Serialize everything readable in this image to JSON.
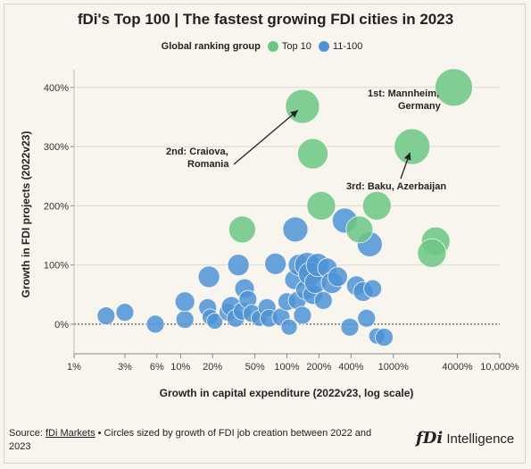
{
  "header": {
    "title": "fDi's Top 100 | The fastest growing FDI cities in 2023"
  },
  "legend": {
    "title": "Global ranking group",
    "entries": [
      {
        "label": "Top 10",
        "color": "#6cc784"
      },
      {
        "label": "11-100",
        "color": "#4f93d6"
      }
    ]
  },
  "footer": {
    "source_label": "Source: ",
    "source_link": "fDi Markets",
    "source_note": " • Circles sized by growth of FDI job creation between 2022 and 2023",
    "logo_mark": "fDi",
    "logo_text": " Intelligence"
  },
  "chart_data": {
    "type": "scatter",
    "title": "fDi's Top 100 | The fastest growing FDI cities in 2023",
    "xlabel": "Growth in capital expenditure (2022v23, log scale)",
    "ylabel": "Growth in FDI projects (2022v23)",
    "x_scale": "log",
    "x_unit": "%",
    "y_unit": "%",
    "xlim": [
      1,
      10000
    ],
    "ylim": [
      -50,
      430
    ],
    "x_ticks": [
      1,
      3,
      6,
      10,
      20,
      50,
      100,
      200,
      400,
      1000,
      4000,
      10000
    ],
    "x_tick_labels": [
      "1%",
      "3%",
      "6%",
      "10%",
      "20%",
      "50%",
      "100%",
      "200%",
      "400%",
      "1000%",
      "4000%",
      "10,000%"
    ],
    "y_ticks": [
      0,
      100,
      200,
      300,
      400
    ],
    "y_tick_labels": [
      "0%",
      "100%",
      "200%",
      "300%",
      "400%"
    ],
    "series": [
      {
        "name": "Top 10",
        "color": "#6cc784",
        "points": [
          {
            "x": 3700,
            "y": 400,
            "size": 21
          },
          {
            "x": 140,
            "y": 368,
            "size": 19
          },
          {
            "x": 1500,
            "y": 300,
            "size": 20
          },
          {
            "x": 175,
            "y": 288,
            "size": 17
          },
          {
            "x": 210,
            "y": 200,
            "size": 16
          },
          {
            "x": 700,
            "y": 200,
            "size": 16
          },
          {
            "x": 38,
            "y": 160,
            "size": 15
          },
          {
            "x": 2500,
            "y": 140,
            "size": 16
          },
          {
            "x": 480,
            "y": 160,
            "size": 15
          },
          {
            "x": 2300,
            "y": 120,
            "size": 16
          }
        ]
      },
      {
        "name": "11-100",
        "color": "#4f93d6",
        "points": [
          {
            "x": 2,
            "y": 14,
            "size": 10
          },
          {
            "x": 3,
            "y": 20,
            "size": 10
          },
          {
            "x": 5.8,
            "y": 0,
            "size": 10
          },
          {
            "x": 11,
            "y": 8,
            "size": 10
          },
          {
            "x": 11,
            "y": 38,
            "size": 11
          },
          {
            "x": 18,
            "y": 28,
            "size": 10
          },
          {
            "x": 19,
            "y": 12,
            "size": 9
          },
          {
            "x": 18.5,
            "y": 80,
            "size": 12
          },
          {
            "x": 21,
            "y": 5,
            "size": 9
          },
          {
            "x": 28,
            "y": 20,
            "size": 10
          },
          {
            "x": 30,
            "y": 30,
            "size": 11
          },
          {
            "x": 33,
            "y": 10,
            "size": 10
          },
          {
            "x": 35,
            "y": 100,
            "size": 12
          },
          {
            "x": 38,
            "y": 22,
            "size": 10
          },
          {
            "x": 40,
            "y": 60,
            "size": 11
          },
          {
            "x": 43,
            "y": 42,
            "size": 10
          },
          {
            "x": 47,
            "y": 18,
            "size": 10
          },
          {
            "x": 55,
            "y": 10,
            "size": 9
          },
          {
            "x": 65,
            "y": 28,
            "size": 10
          },
          {
            "x": 68,
            "y": 10,
            "size": 10
          },
          {
            "x": 78,
            "y": 102,
            "size": 12
          },
          {
            "x": 88,
            "y": 12,
            "size": 10
          },
          {
            "x": 100,
            "y": 38,
            "size": 10
          },
          {
            "x": 105,
            "y": -5,
            "size": 9
          },
          {
            "x": 120,
            "y": 160,
            "size": 14
          },
          {
            "x": 118,
            "y": 75,
            "size": 11
          },
          {
            "x": 125,
            "y": 40,
            "size": 10
          },
          {
            "x": 130,
            "y": 100,
            "size": 12
          },
          {
            "x": 140,
            "y": 15,
            "size": 10
          },
          {
            "x": 150,
            "y": 58,
            "size": 11
          },
          {
            "x": 155,
            "y": 100,
            "size": 14
          },
          {
            "x": 165,
            "y": 85,
            "size": 13
          },
          {
            "x": 175,
            "y": 50,
            "size": 11
          },
          {
            "x": 185,
            "y": 70,
            "size": 12
          },
          {
            "x": 195,
            "y": 100,
            "size": 13
          },
          {
            "x": 220,
            "y": 40,
            "size": 10
          },
          {
            "x": 240,
            "y": 95,
            "size": 11
          },
          {
            "x": 265,
            "y": 70,
            "size": 12
          },
          {
            "x": 300,
            "y": 80,
            "size": 11
          },
          {
            "x": 350,
            "y": 175,
            "size": 14
          },
          {
            "x": 390,
            "y": -5,
            "size": 10
          },
          {
            "x": 450,
            "y": 65,
            "size": 11
          },
          {
            "x": 520,
            "y": 55,
            "size": 11
          },
          {
            "x": 560,
            "y": 10,
            "size": 10
          },
          {
            "x": 600,
            "y": 135,
            "size": 14
          },
          {
            "x": 640,
            "y": 60,
            "size": 10
          },
          {
            "x": 700,
            "y": -20,
            "size": 9
          },
          {
            "x": 820,
            "y": -22,
            "size": 10
          }
        ]
      }
    ],
    "annotations": [
      {
        "lines": [
          "1st: Mannheim,",
          "Germany"
        ]
      },
      {
        "lines": [
          "2nd: Craiova,",
          "Romania"
        ]
      },
      {
        "lines": [
          "3rd: Baku, Azerbaijan"
        ]
      }
    ]
  }
}
